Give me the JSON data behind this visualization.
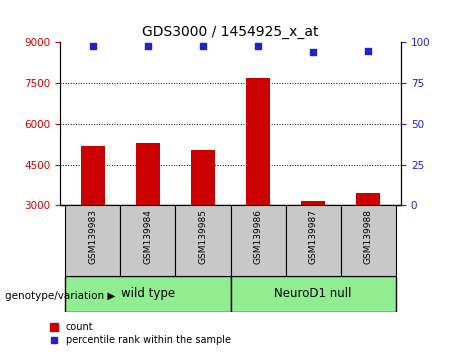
{
  "title": "GDS3000 / 1454925_x_at",
  "samples": [
    "GSM139983",
    "GSM139984",
    "GSM139985",
    "GSM139986",
    "GSM139987",
    "GSM139988"
  ],
  "counts": [
    5200,
    5300,
    5050,
    7700,
    3150,
    3450
  ],
  "percentile_ranks": [
    98,
    98,
    98,
    98,
    94,
    95
  ],
  "ylim_left": [
    3000,
    9000
  ],
  "ylim_right": [
    0,
    100
  ],
  "yticks_left": [
    3000,
    4500,
    6000,
    7500,
    9000
  ],
  "yticks_right": [
    0,
    25,
    50,
    75,
    100
  ],
  "bar_color": "#cc0000",
  "dot_color": "#2222cc",
  "grid_lines": [
    4500,
    6000,
    7500
  ],
  "group_labels": [
    "wild type",
    "NeuroD1 null"
  ],
  "group_ranges": [
    [
      0,
      2
    ],
    [
      3,
      5
    ]
  ],
  "group_color": "#90ee90",
  "group_header": "genotype/variation",
  "legend_count_label": "count",
  "legend_percentile_label": "percentile rank within the sample",
  "tick_color_left": "#cc0000",
  "tick_color_right": "#2222cc",
  "bg_color_xticklabels": "#c8c8c8",
  "bar_width": 0.45
}
